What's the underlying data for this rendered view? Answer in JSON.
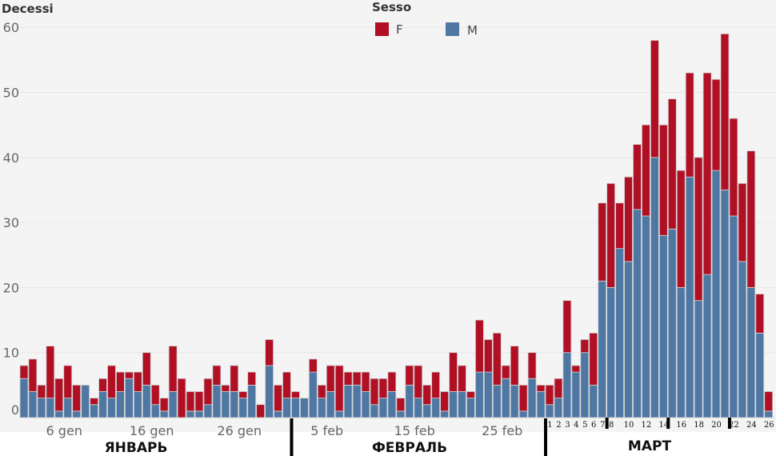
{
  "chart_data": {
    "type": "bar",
    "stacked": true,
    "ylabel": "Decessi",
    "ylim": [
      0,
      60
    ],
    "yticks": [
      0,
      10,
      20,
      30,
      40,
      50,
      60
    ],
    "grid": true,
    "legend": {
      "title": "Sesso",
      "placement": "top-center",
      "entries": [
        "F",
        "M"
      ]
    },
    "colors": {
      "F": "#b00f24",
      "M": "#4e77a3"
    },
    "x_tick_labels": [
      "6 gen",
      "16 gen",
      "26 gen",
      "5 feb",
      "15 feb",
      "25 feb"
    ],
    "march_labels": [
      "1",
      "2",
      "3",
      "4",
      "5",
      "6",
      "7",
      "8",
      "10",
      "12",
      "14",
      "16",
      "18",
      "20",
      "22",
      "24",
      "26"
    ],
    "month_labels": [
      "ЯНВАРЬ",
      "ФЕВРАЛЬ",
      "МАРТ"
    ],
    "days": [
      "1 gen",
      "2 gen",
      "3 gen",
      "4 gen",
      "5 gen",
      "6 gen",
      "7 gen",
      "8 gen",
      "9 gen",
      "10 gen",
      "11 gen",
      "12 gen",
      "13 gen",
      "14 gen",
      "15 gen",
      "16 gen",
      "17 gen",
      "18 gen",
      "19 gen",
      "20 gen",
      "21 gen",
      "22 gen",
      "23 gen",
      "24 gen",
      "25 gen",
      "26 gen",
      "27 gen",
      "28 gen",
      "29 gen",
      "30 gen",
      "31 gen",
      "1 feb",
      "2 feb",
      "3 feb",
      "4 feb",
      "5 feb",
      "6 feb",
      "7 feb",
      "8 feb",
      "9 feb",
      "10 feb",
      "11 feb",
      "12 feb",
      "13 feb",
      "14 feb",
      "15 feb",
      "16 feb",
      "17 feb",
      "18 feb",
      "19 feb",
      "20 feb",
      "21 feb",
      "22 feb",
      "23 feb",
      "24 feb",
      "25 feb",
      "26 feb",
      "27 feb",
      "28 feb",
      "29 feb",
      "1 mar",
      "2 mar",
      "3 mar",
      "4 mar",
      "5 mar",
      "6 mar",
      "7 mar",
      "8 mar",
      "9 mar",
      "10 mar",
      "11 mar",
      "12 mar",
      "13 mar",
      "14 mar",
      "15 mar",
      "16 mar",
      "17 mar",
      "18 mar",
      "19 mar",
      "20 mar",
      "21 mar",
      "22 mar",
      "23 mar",
      "24 mar",
      "25 mar",
      "26 mar"
    ],
    "series": [
      {
        "name": "M",
        "values": [
          6,
          4,
          3,
          3,
          1,
          3,
          1,
          5,
          2,
          4,
          3,
          4,
          6,
          4,
          5,
          2,
          1,
          4,
          0,
          1,
          1,
          2,
          5,
          4,
          4,
          3,
          5,
          0,
          8,
          1,
          3,
          3,
          3,
          7,
          3,
          4,
          1,
          5,
          5,
          4,
          2,
          3,
          4,
          1,
          5,
          3,
          2,
          3,
          1,
          4,
          4,
          3,
          7,
          7,
          5,
          6,
          5,
          1,
          6,
          4,
          2,
          3,
          10,
          7,
          10,
          5,
          21,
          20,
          26,
          24,
          32,
          31,
          40,
          28,
          29,
          20,
          37,
          18,
          22,
          38,
          35,
          31,
          24,
          20,
          13,
          1
        ]
      },
      {
        "name": "F",
        "values": [
          2,
          5,
          2,
          8,
          5,
          5,
          4,
          0,
          1,
          2,
          5,
          3,
          1,
          3,
          5,
          3,
          2,
          7,
          6,
          3,
          3,
          4,
          3,
          1,
          4,
          1,
          2,
          2,
          4,
          4,
          4,
          1,
          0,
          2,
          2,
          4,
          7,
          2,
          2,
          3,
          4,
          3,
          3,
          2,
          3,
          5,
          3,
          4,
          3,
          6,
          4,
          1,
          8,
          5,
          8,
          2,
          6,
          4,
          4,
          1,
          3,
          3,
          8,
          1,
          2,
          8,
          12,
          16,
          7,
          13,
          10,
          14,
          18,
          17,
          20,
          18,
          16,
          22,
          31,
          14,
          24,
          15,
          12,
          21,
          6,
          3
        ]
      }
    ]
  }
}
